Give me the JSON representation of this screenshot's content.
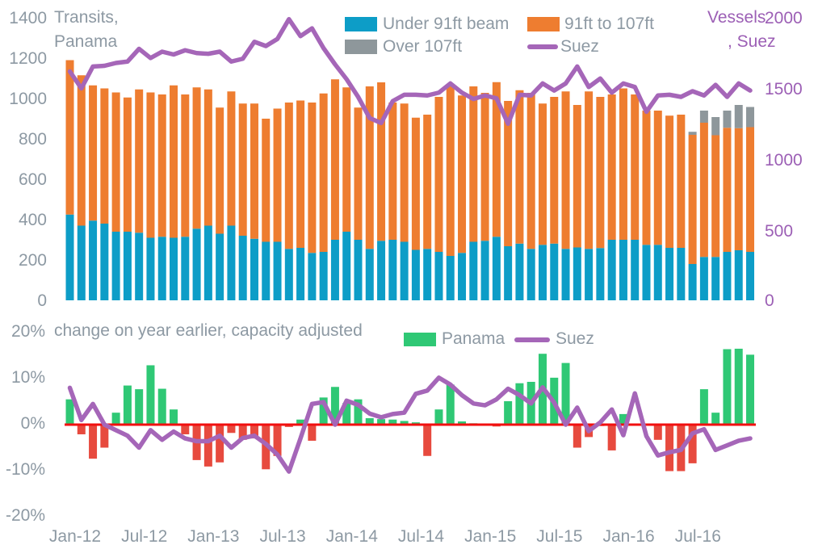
{
  "colors": {
    "blue": "#0d9dc7",
    "orange": "#ee7d30",
    "gray": "#8e979b",
    "suez_purple": "#a566b8",
    "green": "#2fc875",
    "red": "#e74a3e",
    "zero_line_red": "#f20f0f",
    "axis_text": "#8d99a3",
    "purple_text": "#9c5fb5"
  },
  "top_chart_text": {
    "left_axis_title_line1": "Transits,",
    "left_axis_title_line2": "Panama",
    "right_axis_title_line1": "Vessels",
    "right_axis_title_line2": ", Suez",
    "legend": {
      "under91": "Under 91ft beam",
      "ft91to107": "91ft to 107ft",
      "over107": "Over 107ft",
      "suez": "Suez"
    }
  },
  "bottom_chart_text": {
    "title": "change on year earlier, capacity adjusted",
    "legend": {
      "panama": "Panama",
      "suez": "Suez"
    }
  },
  "chart_data": [
    {
      "type": "bar",
      "subtype": "stacked-bars-with-line",
      "title": "Transits, Panama / Vessels, Suez",
      "x": [
        "Jan-12",
        "Feb-12",
        "Mar-12",
        "Apr-12",
        "May-12",
        "Jun-12",
        "Jul-12",
        "Aug-12",
        "Sep-12",
        "Oct-12",
        "Nov-12",
        "Dec-12",
        "Jan-13",
        "Feb-13",
        "Mar-13",
        "Apr-13",
        "May-13",
        "Jun-13",
        "Jul-13",
        "Aug-13",
        "Sep-13",
        "Oct-13",
        "Nov-13",
        "Dec-13",
        "Jan-14",
        "Feb-14",
        "Mar-14",
        "Apr-14",
        "May-14",
        "Jun-14",
        "Jul-14",
        "Aug-14",
        "Sep-14",
        "Oct-14",
        "Nov-14",
        "Dec-14",
        "Jan-15",
        "Feb-15",
        "Mar-15",
        "Apr-15",
        "May-15",
        "Jun-15",
        "Jul-15",
        "Aug-15",
        "Sep-15",
        "Oct-15",
        "Nov-15",
        "Dec-15",
        "Jan-16",
        "Feb-16",
        "Mar-16",
        "Apr-16",
        "May-16",
        "Jun-16",
        "Jul-16",
        "Aug-16",
        "Sep-16",
        "Oct-16",
        "Nov-16",
        "Dec-16"
      ],
      "series": [
        {
          "name": "Under 91ft beam",
          "type": "bar",
          "axis": "left",
          "values": [
            425,
            370,
            395,
            380,
            340,
            340,
            335,
            310,
            315,
            310,
            315,
            355,
            370,
            330,
            370,
            320,
            305,
            290,
            290,
            255,
            260,
            235,
            240,
            300,
            340,
            300,
            255,
            295,
            300,
            290,
            250,
            255,
            240,
            220,
            235,
            290,
            295,
            315,
            268,
            281,
            255,
            275,
            281,
            255,
            262,
            255,
            259,
            300,
            300,
            300,
            275,
            275,
            260,
            260,
            180,
            215,
            215,
            240,
            248,
            240
          ]
        },
        {
          "name": "91ft to 107ft",
          "type": "bar",
          "axis": "left",
          "values": [
            765,
            745,
            670,
            670,
            690,
            665,
            710,
            720,
            705,
            755,
            705,
            700,
            675,
            625,
            665,
            655,
            670,
            610,
            660,
            725,
            730,
            745,
            785,
            795,
            715,
            655,
            805,
            785,
            680,
            685,
            655,
            665,
            768,
            840,
            780,
            770,
            733,
            766,
            720,
            760,
            773,
            700,
            727,
            780,
            706,
            780,
            749,
            720,
            750,
            720,
            665,
            665,
            655,
            660,
            640,
            665,
            603,
            615,
            605,
            618
          ]
        },
        {
          "name": "Over 107ft",
          "type": "bar",
          "axis": "left",
          "values": [
            0,
            0,
            0,
            0,
            0,
            0,
            0,
            0,
            0,
            0,
            0,
            0,
            0,
            0,
            0,
            0,
            0,
            0,
            0,
            0,
            0,
            0,
            0,
            0,
            0,
            0,
            0,
            0,
            0,
            0,
            0,
            0,
            0,
            0,
            0,
            0,
            0,
            0,
            0,
            0,
            0,
            0,
            0,
            0,
            0,
            0,
            0,
            0,
            0,
            0,
            0,
            0,
            0,
            0,
            15,
            60,
            90,
            85,
            115,
            100
          ]
        },
        {
          "name": "Suez",
          "type": "line",
          "axis": "right",
          "values": [
            1620,
            1500,
            1655,
            1660,
            1680,
            1690,
            1780,
            1715,
            1760,
            1740,
            1770,
            1750,
            1745,
            1760,
            1690,
            1710,
            1830,
            1800,
            1850,
            1990,
            1870,
            1925,
            1785,
            1670,
            1565,
            1440,
            1290,
            1255,
            1410,
            1455,
            1455,
            1450,
            1470,
            1535,
            1470,
            1425,
            1450,
            1430,
            1250,
            1455,
            1450,
            1535,
            1485,
            1535,
            1655,
            1510,
            1570,
            1470,
            1535,
            1510,
            1335,
            1450,
            1455,
            1440,
            1480,
            1450,
            1525,
            1440,
            1535,
            1485
          ]
        }
      ],
      "left_axis": {
        "label": "Transits, Panama",
        "range": [
          0,
          1400
        ],
        "ticks": [
          "1400",
          "1200",
          "1000",
          "800",
          "600",
          "400",
          "200",
          "0"
        ]
      },
      "right_axis": {
        "label": "Vessels, Suez",
        "range": [
          0,
          2000
        ],
        "ticks": [
          "2000",
          "1500",
          "1000",
          "500",
          "0"
        ]
      },
      "grid": false,
      "legend_position": "top"
    },
    {
      "type": "bar",
      "subtype": "bars-with-line",
      "title": "change on year earlier, capacity adjusted",
      "x": [
        "Jan-12",
        "Feb-12",
        "Mar-12",
        "Apr-12",
        "May-12",
        "Jun-12",
        "Jul-12",
        "Aug-12",
        "Sep-12",
        "Oct-12",
        "Nov-12",
        "Dec-12",
        "Jan-13",
        "Feb-13",
        "Mar-13",
        "Apr-13",
        "May-13",
        "Jun-13",
        "Jul-13",
        "Aug-13",
        "Sep-13",
        "Oct-13",
        "Nov-13",
        "Dec-13",
        "Jan-14",
        "Feb-14",
        "Mar-14",
        "Apr-14",
        "May-14",
        "Jun-14",
        "Jul-14",
        "Aug-14",
        "Sep-14",
        "Oct-14",
        "Nov-14",
        "Dec-14",
        "Jan-15",
        "Feb-15",
        "Mar-15",
        "Apr-15",
        "May-15",
        "Jun-15",
        "Jul-15",
        "Aug-15",
        "Sep-15",
        "Oct-15",
        "Nov-15",
        "Dec-15",
        "Jan-16",
        "Feb-16",
        "Mar-16",
        "Apr-16",
        "May-16",
        "Jun-16",
        "Jul-16",
        "Aug-16",
        "Sep-16",
        "Oct-16",
        "Nov-16",
        "Dec-16"
      ],
      "series": [
        {
          "name": "Panama",
          "type": "bar",
          "unit": "%",
          "values": [
            5.5,
            -2.1,
            -7.4,
            -5.0,
            2.6,
            8.5,
            7.7,
            12.9,
            7.8,
            3.3,
            -2.1,
            -7.7,
            -9.1,
            -8.2,
            -1.8,
            -3.3,
            -3.0,
            -9.7,
            -6.8,
            -0.5,
            1.1,
            -3.5,
            5.9,
            8.2,
            4.7,
            5.5,
            1.4,
            1.2,
            1.1,
            0.8,
            0.5,
            -6.8,
            3.3,
            8.7,
            0.7,
            0.3,
            0.2,
            -0.4,
            5.1,
            9.0,
            9.3,
            15.4,
            10.2,
            13.4,
            -5.0,
            -2.7,
            -0.3,
            -5.6,
            2.3,
            0.1,
            -0.2,
            -3.3,
            -10.1,
            -10.1,
            -8.4,
            7.7,
            2.6,
            16.4,
            16.5,
            15.2
          ]
        },
        {
          "name": "Suez",
          "type": "line",
          "unit": "%",
          "values": [
            8.0,
            1.0,
            4.5,
            0.0,
            -1.2,
            -2.4,
            -5.0,
            -1.2,
            -3.3,
            -1.5,
            -3.0,
            -3.6,
            -3.6,
            -2.4,
            -5.0,
            -2.9,
            -2.4,
            -4.2,
            -6.5,
            -10.2,
            -3.0,
            4.5,
            4.9,
            0.0,
            5.2,
            4.3,
            2.4,
            1.6,
            2.3,
            2.6,
            6.7,
            7.4,
            10.2,
            8.7,
            6.4,
            4.6,
            4.2,
            5.5,
            7.8,
            6.4,
            4.6,
            8.1,
            4.8,
            0.0,
            3.7,
            -1.4,
            0.5,
            3.3,
            -2.3,
            6.8,
            -2.5,
            -6.7,
            -6.0,
            -5.5,
            -1.9,
            -1.0,
            -5.5,
            -4.5,
            -3.5,
            -3.0
          ]
        }
      ],
      "y_axis": {
        "range": [
          -20,
          20
        ],
        "ticks": [
          "20%",
          "10%",
          "0%",
          "-10%",
          "-20%"
        ],
        "zero_line": true
      },
      "x_tick_labels": [
        "Jan-12",
        "Jul-12",
        "Jan-13",
        "Jul-13",
        "Jan-14",
        "Jul-14",
        "Jan-15",
        "Jul-15",
        "Jan-16",
        "Jul-16"
      ],
      "grid": false,
      "legend_position": "top"
    }
  ]
}
